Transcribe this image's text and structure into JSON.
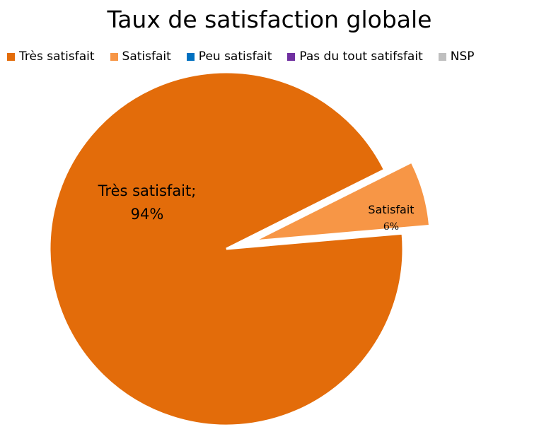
{
  "chart_data": {
    "type": "pie",
    "title": "Taux de satisfaction globale",
    "legend_position": "top",
    "series": [
      {
        "name": "Très satisfait",
        "value": 94,
        "color": "#E36C0A",
        "exploded": false,
        "label_name": "Très satisfait;",
        "label_value": "94%"
      },
      {
        "name": "Satisfait",
        "value": 6,
        "color": "#F79646",
        "exploded": true,
        "label_name": "Satisfait",
        "label_value": "6%"
      },
      {
        "name": "Peu satisfait",
        "value": 0,
        "color": "#0070C0"
      },
      {
        "name": "Pas du tout satifsfait",
        "value": 0,
        "color": "#7030A0"
      },
      {
        "name": "NSP",
        "value": 0,
        "color": "#BFBFBF"
      }
    ]
  }
}
